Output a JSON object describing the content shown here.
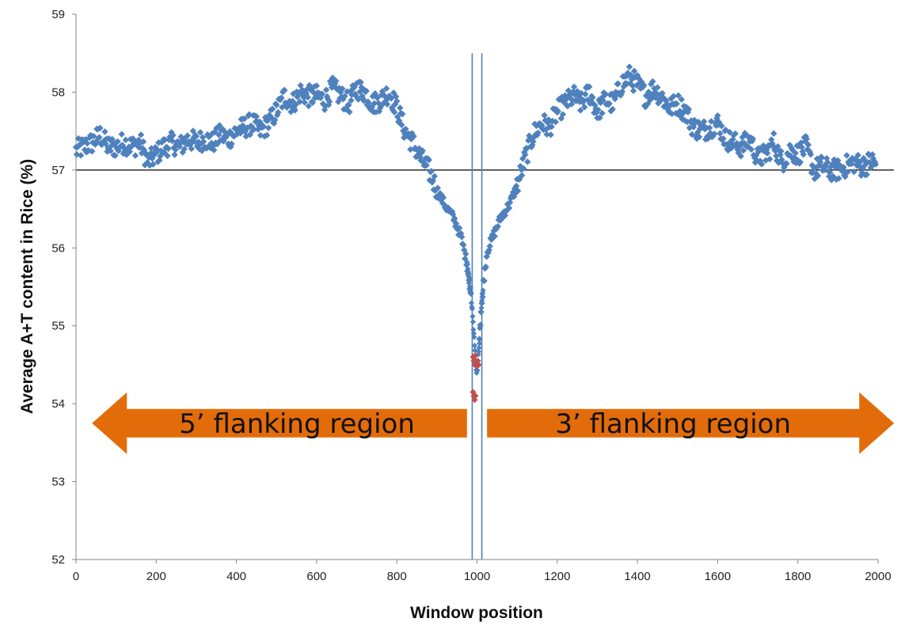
{
  "chart_data": {
    "type": "scatter",
    "xlabel": "Window position",
    "ylabel": "Average A+T content in Rice (%)",
    "xlim": [
      0,
      2000
    ],
    "ylim": [
      52,
      59
    ],
    "x_ticks": [
      0,
      200,
      400,
      600,
      800,
      1000,
      1200,
      1400,
      1600,
      1800,
      2000
    ],
    "y_ticks": [
      52,
      53,
      54,
      55,
      56,
      57,
      58,
      59
    ],
    "grid": false,
    "legend": "none",
    "reference_line_y": 57,
    "vertical_lines_x": [
      988,
      1012
    ],
    "colors": {
      "series": "#4f81bd",
      "highlight": "#c0504d",
      "arrow": "#e36c0a",
      "reference": "#000000",
      "vline": "#4f81bd"
    },
    "series": [
      {
        "color": "#4f81bd",
        "marker": "diamond",
        "profile": {
          "x": [
            0,
            20,
            40,
            60,
            80,
            100,
            120,
            140,
            160,
            180,
            200,
            220,
            240,
            260,
            280,
            300,
            320,
            340,
            360,
            380,
            400,
            420,
            440,
            460,
            480,
            500,
            520,
            540,
            560,
            580,
            600,
            620,
            640,
            660,
            680,
            700,
            720,
            740,
            760,
            780,
            800,
            820,
            840,
            860,
            880,
            900,
            920,
            940,
            960,
            975,
            985,
            992,
            998,
            1002,
            1008,
            1015,
            1025,
            1040,
            1060,
            1080,
            1100,
            1120,
            1140,
            1160,
            1180,
            1200,
            1220,
            1240,
            1260,
            1280,
            1300,
            1320,
            1340,
            1360,
            1380,
            1400,
            1420,
            1440,
            1460,
            1480,
            1500,
            1520,
            1540,
            1560,
            1580,
            1600,
            1620,
            1640,
            1660,
            1680,
            1700,
            1720,
            1740,
            1760,
            1780,
            1800,
            1820,
            1840,
            1860,
            1880,
            1900,
            1920,
            1940,
            1960,
            1980,
            1995
          ],
          "y": [
            57.25,
            57.3,
            57.35,
            57.45,
            57.3,
            57.3,
            57.35,
            57.3,
            57.35,
            57.1,
            57.2,
            57.3,
            57.35,
            57.3,
            57.4,
            57.35,
            57.4,
            57.35,
            57.45,
            57.4,
            57.5,
            57.55,
            57.6,
            57.5,
            57.6,
            57.75,
            57.95,
            57.85,
            58.0,
            57.95,
            57.95,
            57.9,
            58.05,
            57.95,
            57.85,
            58.05,
            58.0,
            57.85,
            57.9,
            58.0,
            57.8,
            57.5,
            57.35,
            57.15,
            57.0,
            56.75,
            56.55,
            56.4,
            56.15,
            55.8,
            55.4,
            54.9,
            54.4,
            54.5,
            55.0,
            55.5,
            55.95,
            56.15,
            56.4,
            56.55,
            56.8,
            57.15,
            57.45,
            57.6,
            57.55,
            57.75,
            57.85,
            57.95,
            57.85,
            58.0,
            57.75,
            57.9,
            57.85,
            58.1,
            58.2,
            58.1,
            57.95,
            58.05,
            57.95,
            57.8,
            57.85,
            57.75,
            57.55,
            57.5,
            57.55,
            57.6,
            57.4,
            57.35,
            57.3,
            57.4,
            57.15,
            57.2,
            57.35,
            57.1,
            57.25,
            57.2,
            57.3,
            57.0,
            57.05,
            57.0,
            57.0,
            57.05,
            57.1,
            57.05,
            57.1,
            57.1
          ]
        }
      },
      {
        "color": "#c0504d",
        "marker": "diamond",
        "x": [
          990,
          992,
          994,
          996,
          998,
          1000,
          1002,
          1004,
          990,
          992,
          994,
          996
        ],
        "y": [
          54.6,
          54.55,
          54.5,
          54.62,
          54.5,
          54.48,
          54.55,
          54.5,
          54.15,
          54.1,
          54.05,
          54.1
        ]
      }
    ],
    "annotations": [
      {
        "text": "5’ flanking region",
        "direction": "left",
        "x_from": 975,
        "x_to": 40,
        "y": 53.75
      },
      {
        "text": "3’ flanking region",
        "direction": "right",
        "x_from": 1025,
        "x_to": 2040,
        "y": 53.75
      }
    ]
  }
}
